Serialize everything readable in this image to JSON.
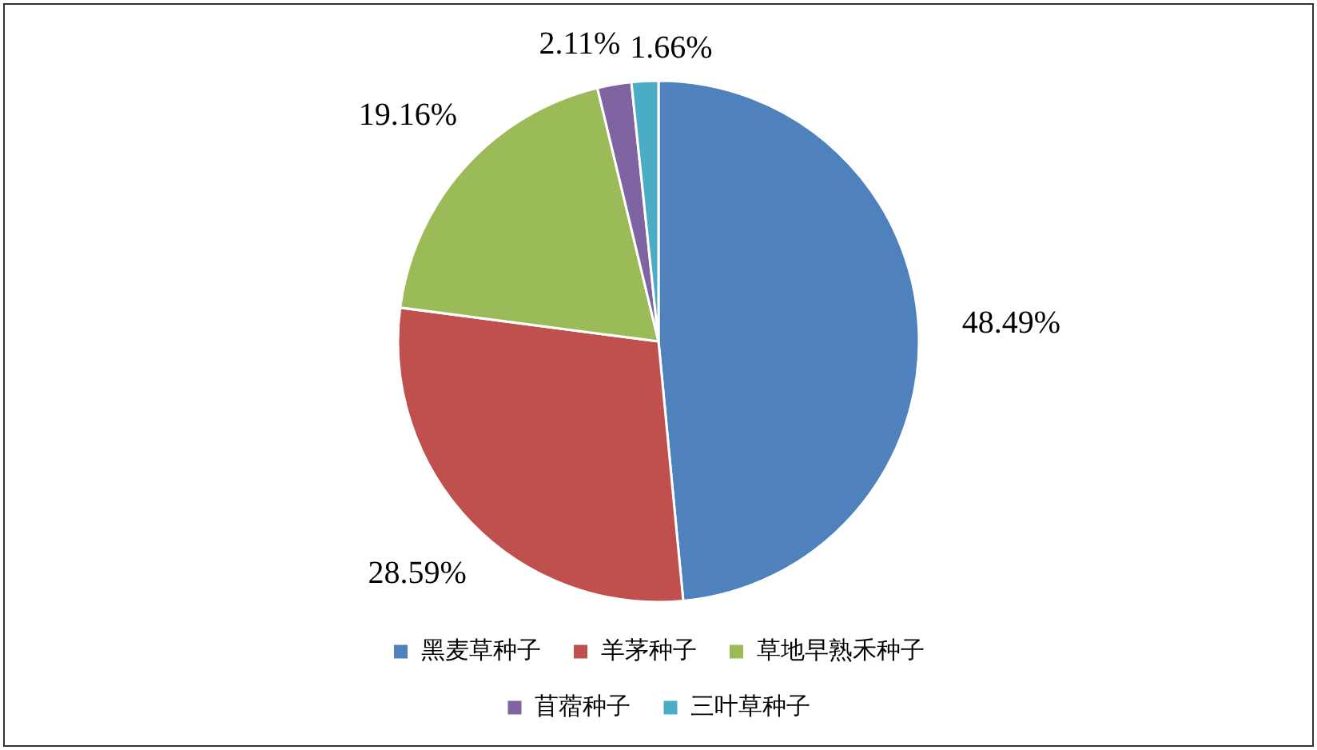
{
  "chart_data": {
    "type": "pie",
    "categories": [
      "黑麦草种子",
      "羊茅种子",
      "草地早熟禾种子",
      "苜蓿种子",
      "三叶草种子"
    ],
    "values": [
      48.49,
      28.59,
      19.16,
      2.11,
      1.66
    ],
    "colors": [
      "#4f81bd",
      "#c0504d",
      "#9bbb59",
      "#8064a2",
      "#4bacc6"
    ],
    "value_labels": [
      "48.49%",
      "28.59%",
      "19.16%",
      "2.11%",
      "1.66%"
    ],
    "legend": "bottom"
  }
}
